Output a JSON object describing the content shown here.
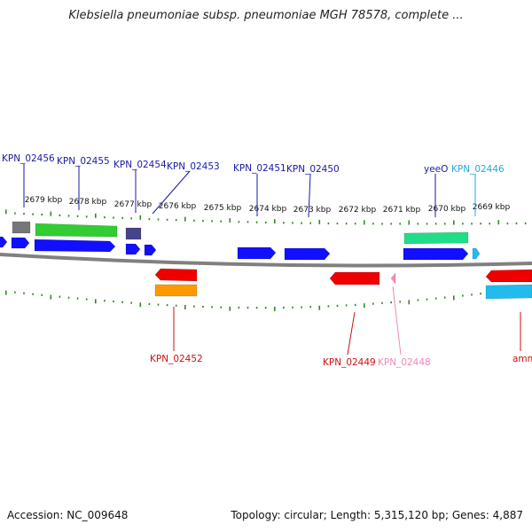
{
  "title": "Klebsiella pneumoniae subsp. pneumoniae MGH 78578, complete ...",
  "footer": {
    "accession": "Accession: NC_009648",
    "topology": "Topology: circular; Length: 5,315,120 bp; Genes: 4,887"
  },
  "colors": {
    "backbone": "#808080",
    "tick": "#2e8b22",
    "forward": "#1010ff",
    "reverse": "#ee0000",
    "rna_green": "#33cc33",
    "teal": "#22dd88",
    "cyan": "#22bbee",
    "orange": "#ff9900",
    "pink": "#ff88bb",
    "gray": "#777777",
    "slate": "#444488",
    "label_blue": "#1a1aa8",
    "label_red": "#cc1010",
    "label_cyan": "#22aadd",
    "label_pink": "#ee88bb"
  },
  "scale_labels": [
    "2679 kbp",
    "2678 kbp",
    "2677 kbp",
    "2676 kbp",
    "2675 kbp",
    "2674 kbp",
    "2673 kbp",
    "2672 kbp",
    "2671 kbp",
    "2670 kbp",
    "2669 kbp"
  ],
  "gene_labels": {
    "KPN_02456": "KPN_02456",
    "KPN_02455": "KPN_02455",
    "KPN_02454": "KPN_02454",
    "KPN_02453": "KPN_02453",
    "KPN_02451": "KPN_02451",
    "KPN_02450": "KPN_02450",
    "yeeO": "yeeO",
    "KPN_02446": "KPN_02446",
    "KPN_02452": "KPN_02452",
    "KPN_02449": "KPN_02449",
    "KPN_02448": "KPN_02448",
    "amn": "amn"
  }
}
